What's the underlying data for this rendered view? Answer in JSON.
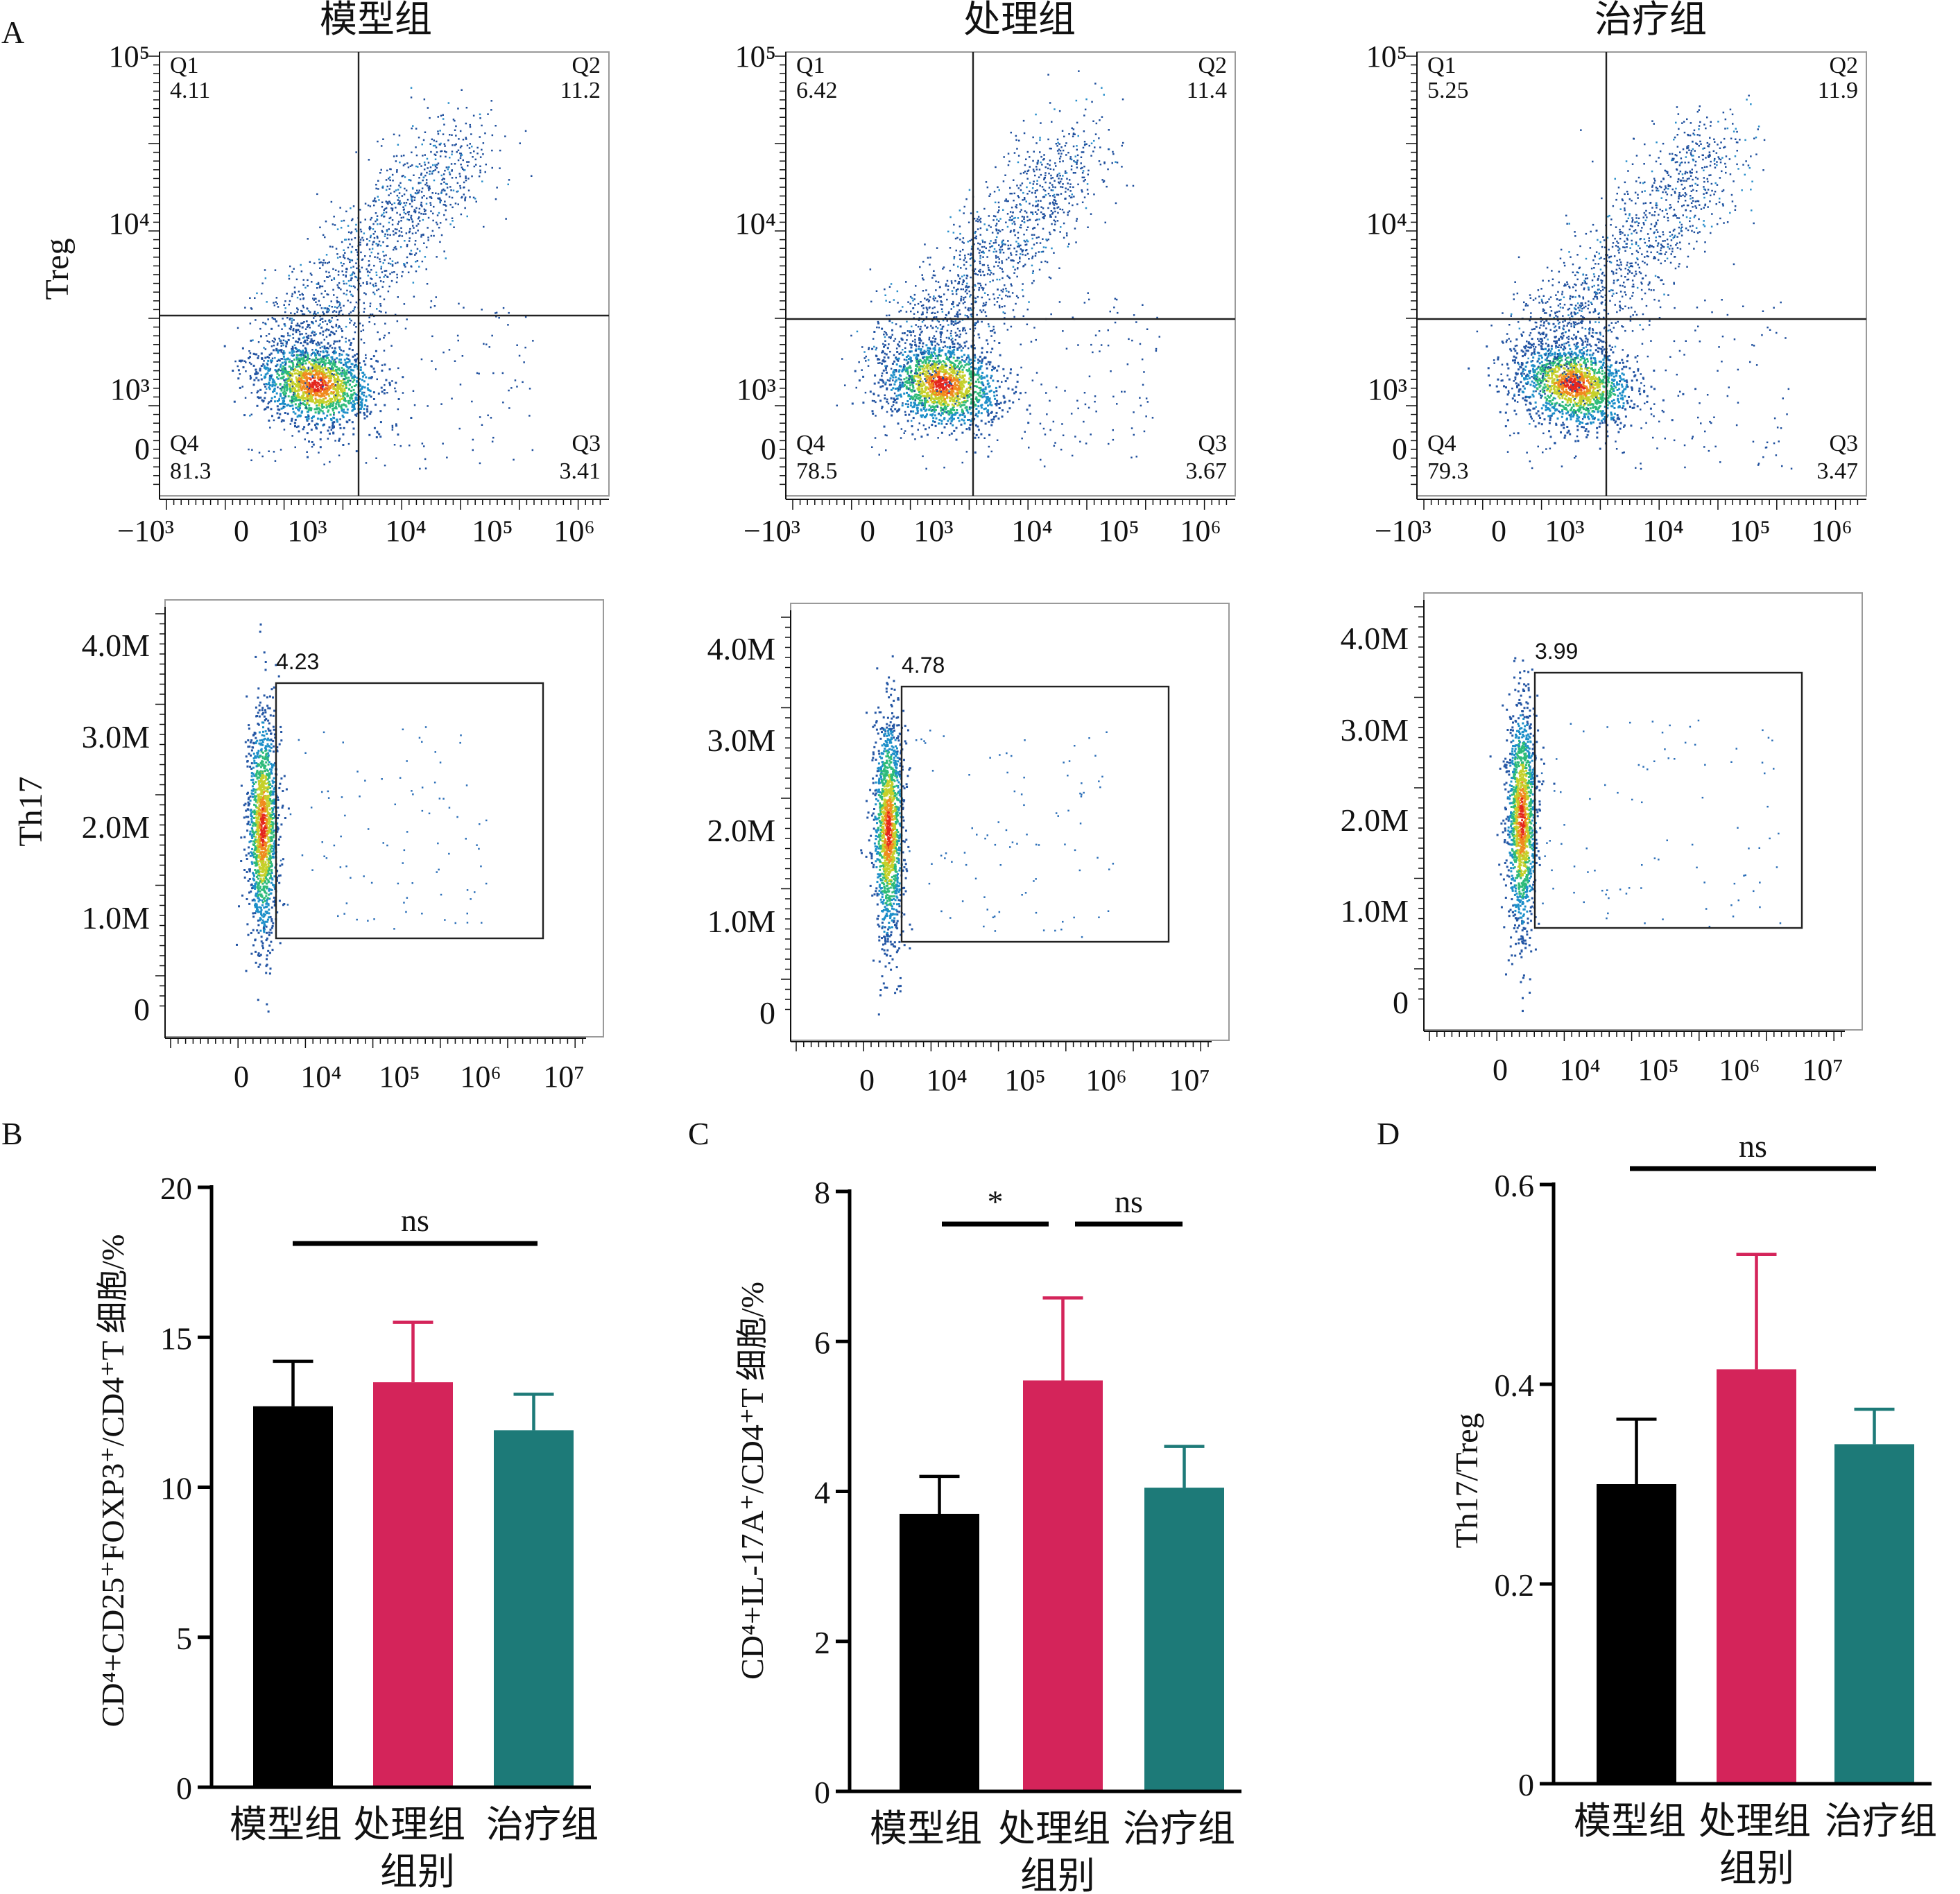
{
  "panel_letters": [
    "A",
    "B",
    "C",
    "D"
  ],
  "group_names": [
    "模型组",
    "处理组",
    "治疗组"
  ],
  "flow": {
    "treg_ylabel": "Treg",
    "th17_ylabel": "Th17",
    "treg_xticks": [
      "−10³",
      "0",
      "10³",
      "10⁴",
      "10⁵",
      "10⁶"
    ],
    "treg_yticks": [
      "10⁵",
      "10⁴",
      "10³",
      "0"
    ],
    "th17_xticks": [
      "0",
      "10⁴",
      "10⁵",
      "10⁶",
      "10⁷"
    ],
    "th17_yticks": [
      "4.0M",
      "3.0M",
      "2.0M",
      "1.0M",
      "0"
    ],
    "quadrant_names": [
      "Q1",
      "Q2",
      "Q3",
      "Q4"
    ],
    "treg_quadrants": [
      {
        "q1": "4.11",
        "q2": "11.2",
        "q3": "3.41",
        "q4": "81.3"
      },
      {
        "q1": "6.42",
        "q2": "11.4",
        "q3": "3.67",
        "q4": "78.5"
      },
      {
        "q1": "5.25",
        "q2": "11.9",
        "q3": "3.47",
        "q4": "79.3"
      }
    ],
    "th17_gates": [
      "4.23",
      "4.78",
      "3.99"
    ]
  },
  "chart_data": [
    {
      "type": "bar",
      "panel": "B",
      "categories": [
        "模型组",
        "处理组",
        "治疗组"
      ],
      "values": [
        12.7,
        13.5,
        11.9
      ],
      "errors": [
        1.5,
        2.0,
        1.2
      ],
      "colors": [
        "#000000",
        "#d4245a",
        "#1d7a78"
      ],
      "ylabel": "CD⁴+CD25⁺FOXP3⁺/CD4⁺T 细胞/%",
      "xlabel": "组别",
      "ylim": [
        0,
        20
      ],
      "yticks": [
        0,
        5,
        10,
        15,
        20
      ],
      "ytick_labels": [
        "0",
        "5",
        "10",
        "15",
        "20"
      ],
      "significance": [
        {
          "from": 0,
          "to": 2,
          "label": "ns"
        }
      ]
    },
    {
      "type": "bar",
      "panel": "C",
      "categories": [
        "模型组",
        "处理组",
        "治疗组"
      ],
      "values": [
        3.7,
        5.48,
        4.05
      ],
      "errors": [
        0.5,
        1.1,
        0.55
      ],
      "colors": [
        "#000000",
        "#d4245a",
        "#1d7a78"
      ],
      "ylabel": "CD⁴+IL-17A⁺/CD4⁺T 细胞/%",
      "xlabel": "组别",
      "ylim": [
        0,
        8
      ],
      "yticks": [
        0,
        2,
        4,
        6,
        8
      ],
      "ytick_labels": [
        "0",
        "2",
        "4",
        "6",
        "8"
      ],
      "significance": [
        {
          "from": 0,
          "to": 1,
          "label": "*"
        },
        {
          "from": 1,
          "to": 2,
          "label": "ns"
        }
      ]
    },
    {
      "type": "bar",
      "panel": "D",
      "categories": [
        "模型组",
        "处理组",
        "治疗组"
      ],
      "values": [
        0.3,
        0.415,
        0.34
      ],
      "errors": [
        0.065,
        0.115,
        0.035
      ],
      "colors": [
        "#000000",
        "#d4245a",
        "#1d7a78"
      ],
      "ylabel": "Th17/Treg",
      "xlabel": "组别",
      "ylim": [
        0,
        0.6
      ],
      "yticks": [
        0,
        0.2,
        0.4,
        0.6
      ],
      "ytick_labels": [
        "0",
        "0.2",
        "0.4",
        "0.6"
      ],
      "significance": [
        {
          "from": 0,
          "to": 2,
          "label": "ns"
        }
      ]
    }
  ]
}
